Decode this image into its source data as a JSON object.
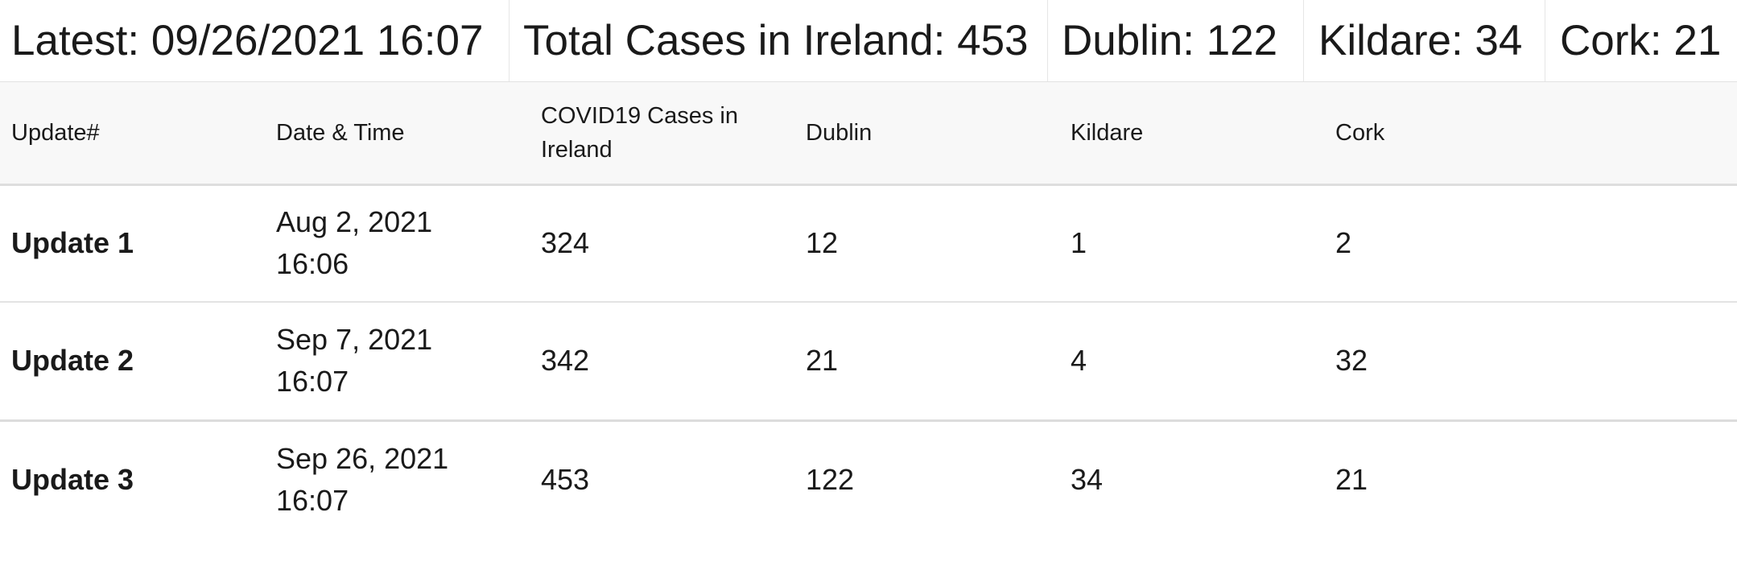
{
  "summary": {
    "latest": "Latest: 09/26/2021 16:07",
    "total": "Total Cases in Ireland: 453",
    "dublin": "Dublin: 122",
    "kildare": "Kildare: 34",
    "cork": "Cork: 21"
  },
  "table": {
    "headers": {
      "update": "Update#",
      "date": "Date & Time",
      "ireland_line1": "COVID19 Cases in",
      "ireland_line2": "Ireland",
      "dublin": "Dublin",
      "kildare": "Kildare",
      "cork": "Cork"
    },
    "rows": [
      {
        "update": "Update 1",
        "date": "Aug 2, 2021",
        "time": "16:06",
        "ireland": "324",
        "dublin": "12",
        "kildare": "1",
        "cork": "2"
      },
      {
        "update": "Update 2",
        "date": "Sep 7, 2021",
        "time": "16:07",
        "ireland": "342",
        "dublin": "21",
        "kildare": "4",
        "cork": "32"
      },
      {
        "update": "Update 3",
        "date": "Sep 26, 2021",
        "time": "16:07",
        "ireland": "453",
        "dublin": "122",
        "kildare": "34",
        "cork": "21"
      }
    ]
  }
}
